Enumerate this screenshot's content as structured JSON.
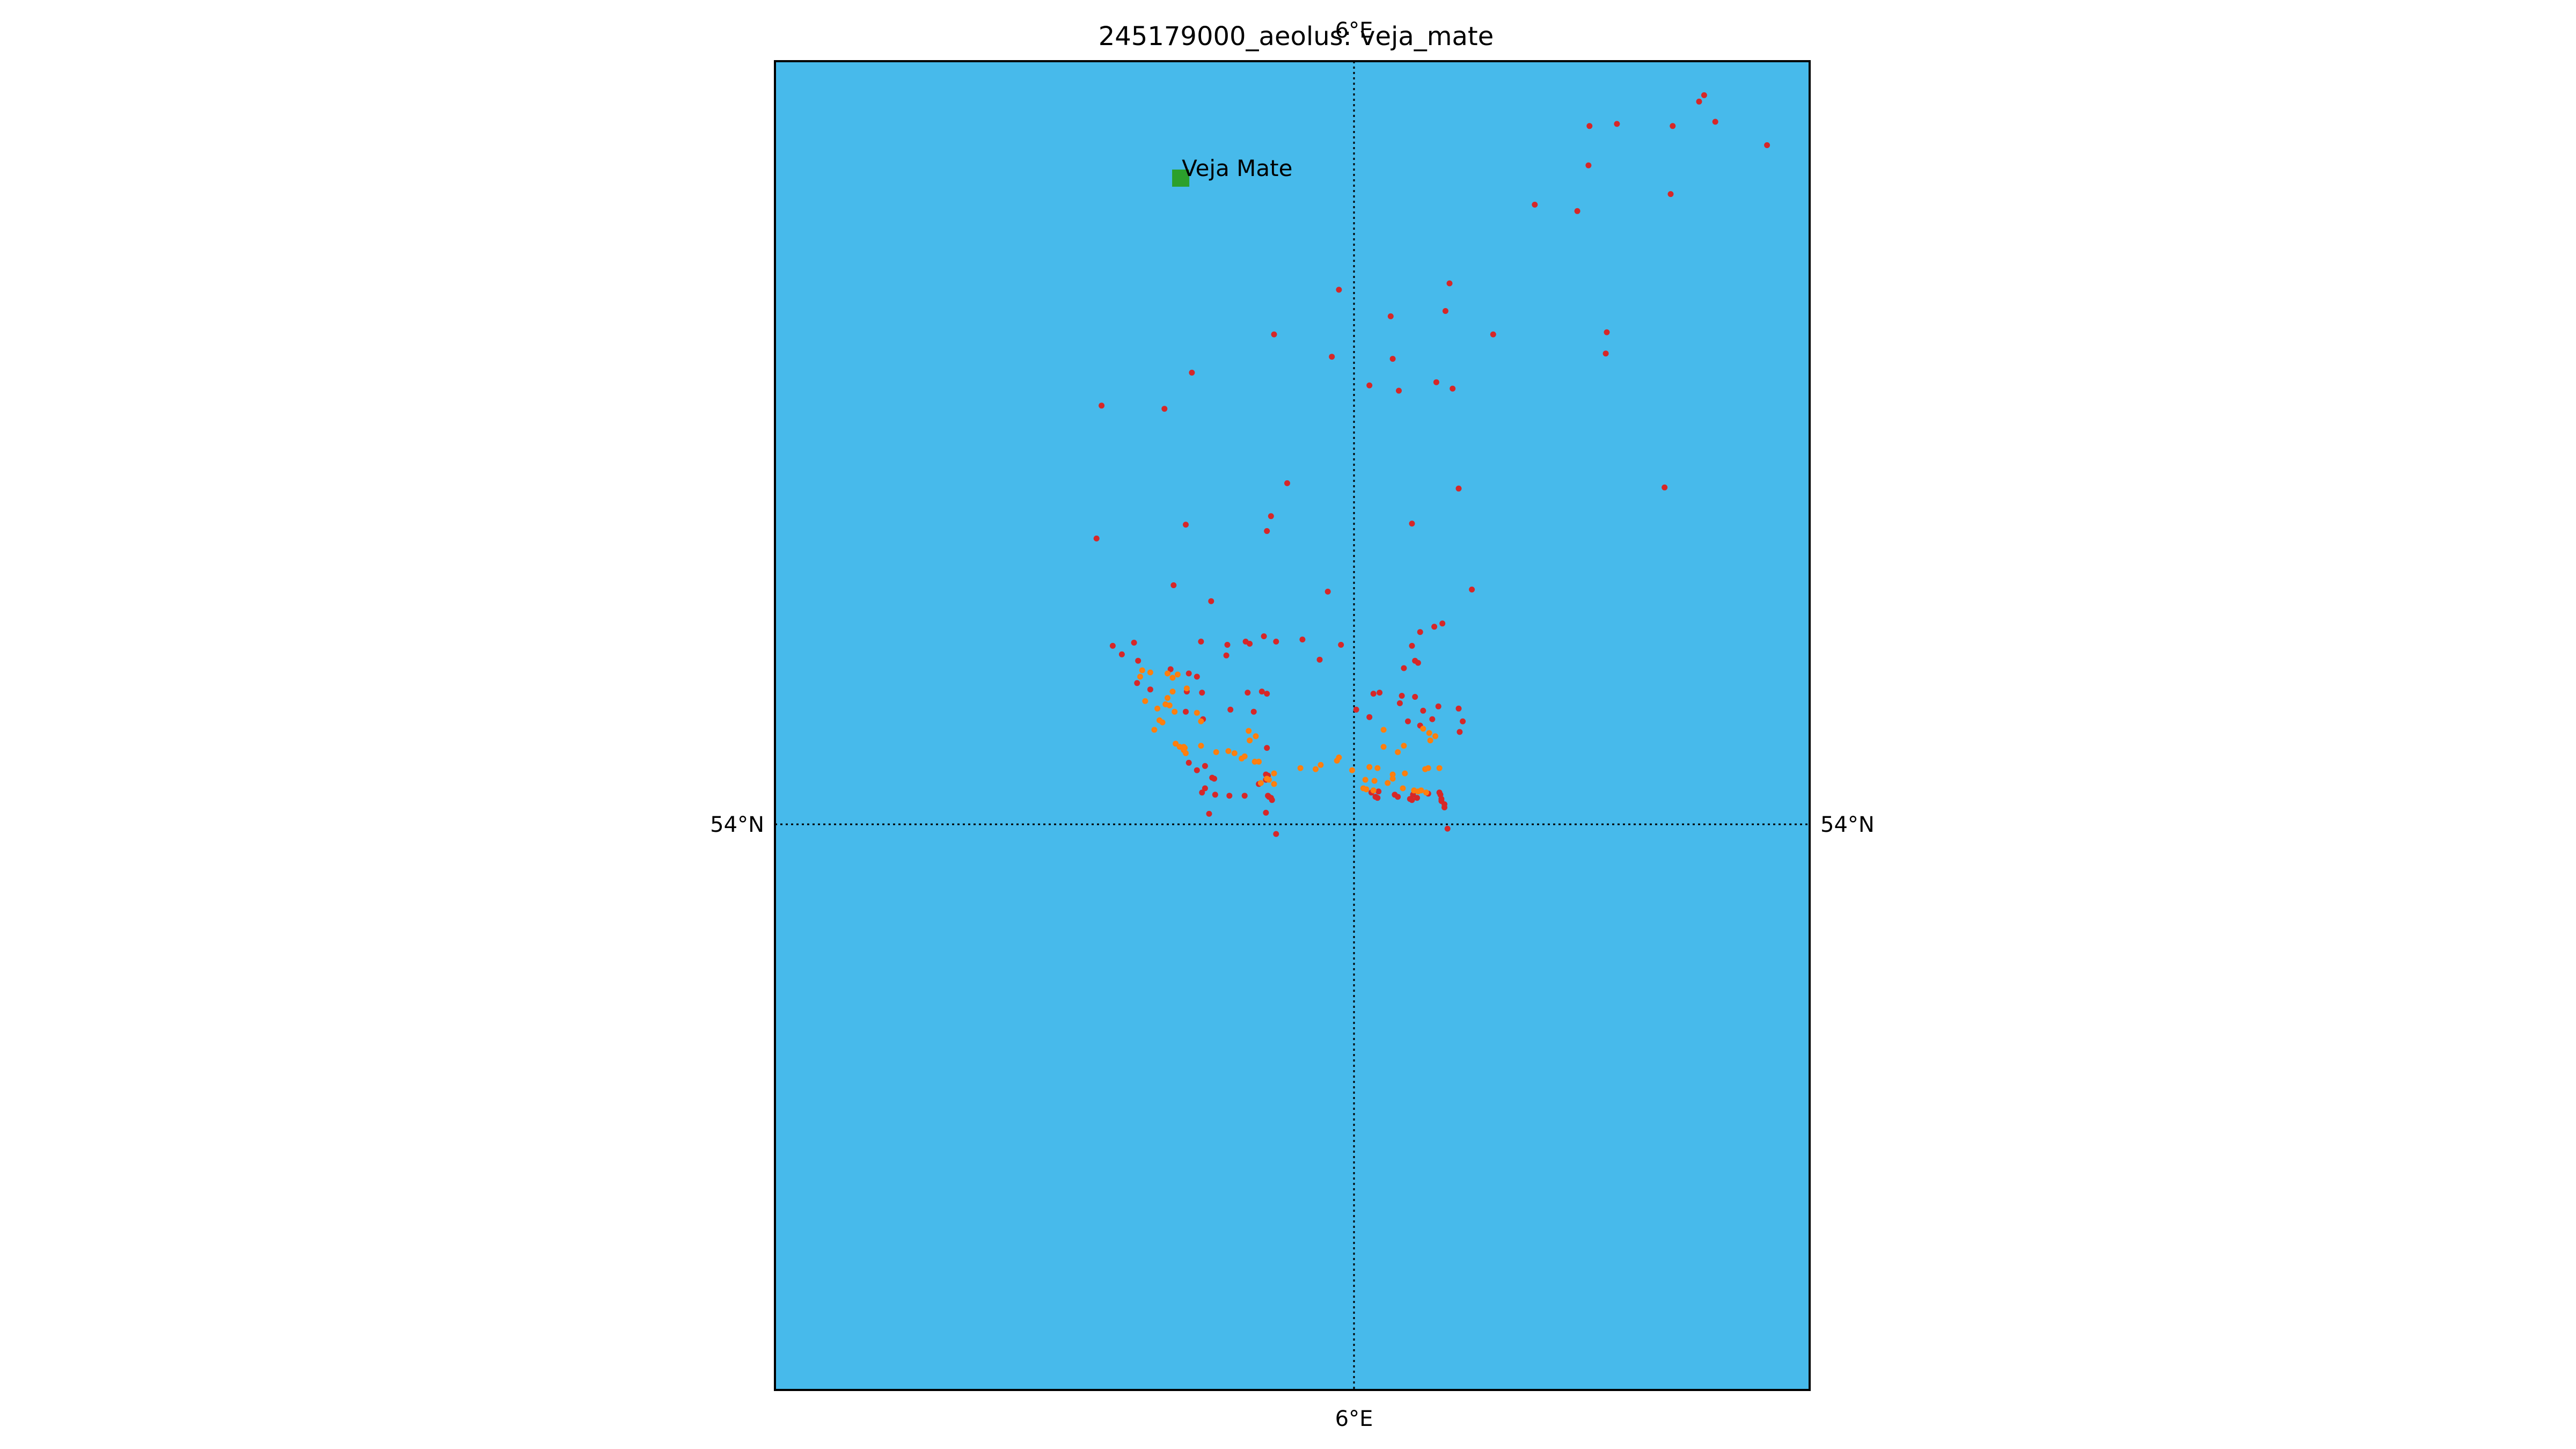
{
  "title": "245179000_aeolus: veja_mate",
  "map": {
    "ocean_color": "#47BAEB",
    "frame_color": "#000000",
    "lon_range": [
      5.45,
      6.47
    ],
    "lat_range": [
      53.47,
      54.72
    ],
    "meridian": {
      "value": 6.0,
      "label_top": "6°E",
      "label_bottom": "6°E"
    },
    "parallel": {
      "value": 54.0,
      "label_left": "54°N",
      "label_right": "54°N"
    }
  },
  "site": {
    "name": "Veja Mate",
    "lon": 5.85,
    "lat": 54.61,
    "color": "#2CA02C"
  },
  "chart_data": {
    "type": "scatter",
    "title": "245179000_aeolus: veja_mate",
    "xlabel": "",
    "ylabel": "",
    "xlim": [
      5.45,
      6.47
    ],
    "ylim": [
      53.47,
      54.72
    ],
    "grid": true,
    "series": [
      {
        "color": "#D62728",
        "points": [
          [
            6.366,
            54.688
          ],
          [
            6.361,
            54.682
          ],
          [
            6.377,
            54.663
          ],
          [
            6.253,
            54.659
          ],
          [
            6.28,
            54.661
          ],
          [
            6.335,
            54.659
          ],
          [
            6.428,
            54.641
          ],
          [
            6.252,
            54.622
          ],
          [
            6.333,
            54.595
          ],
          [
            6.199,
            54.585
          ],
          [
            6.241,
            54.579
          ],
          [
            6.006,
            54.505
          ],
          [
            6.115,
            54.511
          ],
          [
            6.111,
            54.485
          ],
          [
            6.057,
            54.48
          ],
          [
            5.942,
            54.463
          ],
          [
            6.158,
            54.463
          ],
          [
            6.27,
            54.465
          ],
          [
            5.999,
            54.442
          ],
          [
            6.059,
            54.44
          ],
          [
            6.269,
            54.445
          ],
          [
            5.861,
            54.427
          ],
          [
            6.036,
            54.415
          ],
          [
            6.102,
            54.418
          ],
          [
            6.065,
            54.41
          ],
          [
            6.118,
            54.412
          ],
          [
            5.772,
            54.396
          ],
          [
            5.834,
            54.393
          ],
          [
            5.955,
            54.323
          ],
          [
            6.124,
            54.318
          ],
          [
            6.327,
            54.319
          ],
          [
            6.078,
            54.285
          ],
          [
            5.855,
            54.284
          ],
          [
            5.939,
            54.292
          ],
          [
            5.935,
            54.278
          ],
          [
            5.767,
            54.271
          ],
          [
            5.995,
            54.221
          ],
          [
            6.137,
            54.223
          ],
          [
            5.843,
            54.227
          ],
          [
            5.88,
            54.212
          ],
          [
            6.108,
            54.191
          ],
          [
            6.1,
            54.188
          ],
          [
            6.086,
            54.183
          ],
          [
            6.078,
            54.17
          ],
          [
            5.932,
            54.179
          ],
          [
            5.944,
            54.174
          ],
          [
            5.97,
            54.176
          ],
          [
            5.914,
            54.174
          ],
          [
            5.918,
            54.172
          ],
          [
            6.008,
            54.171
          ],
          [
            5.783,
            54.17
          ],
          [
            5.804,
            54.173
          ],
          [
            5.87,
            54.174
          ],
          [
            5.896,
            54.171
          ],
          [
            5.792,
            54.162
          ],
          [
            5.808,
            54.156
          ],
          [
            5.895,
            54.161
          ],
          [
            5.987,
            54.157
          ],
          [
            6.081,
            54.156
          ],
          [
            6.084,
            54.154
          ],
          [
            6.07,
            54.149
          ],
          [
            5.84,
            54.148
          ],
          [
            5.858,
            54.144
          ],
          [
            5.866,
            54.141
          ],
          [
            5.807,
            54.135
          ],
          [
            5.82,
            54.129
          ],
          [
            5.856,
            54.127
          ],
          [
            5.871,
            54.126
          ],
          [
            5.916,
            54.126
          ],
          [
            5.93,
            54.127
          ],
          [
            5.935,
            54.125
          ],
          [
            6.04,
            54.125
          ],
          [
            6.046,
            54.126
          ],
          [
            6.068,
            54.123
          ],
          [
            6.081,
            54.122
          ],
          [
            5.899,
            54.11
          ],
          [
            6.066,
            54.116
          ],
          [
            6.104,
            54.113
          ],
          [
            6.124,
            54.111
          ],
          [
            5.922,
            54.108
          ],
          [
            6.023,
            54.11
          ],
          [
            6.089,
            54.109
          ],
          [
            5.855,
            54.108
          ],
          [
            5.872,
            54.101
          ],
          [
            6.036,
            54.103
          ],
          [
            6.074,
            54.099
          ],
          [
            6.098,
            54.101
          ],
          [
            6.086,
            54.095
          ],
          [
            6.128,
            54.099
          ],
          [
            6.125,
            54.089
          ],
          [
            5.935,
            54.074
          ],
          [
            5.858,
            54.06
          ],
          [
            5.874,
            54.057
          ],
          [
            5.866,
            54.053
          ],
          [
            5.881,
            54.046
          ],
          [
            5.883,
            54.045
          ],
          [
            5.934,
            54.049
          ],
          [
            5.936,
            54.048
          ],
          [
            5.934,
            54.044
          ],
          [
            5.927,
            54.04
          ],
          [
            5.874,
            54.036
          ],
          [
            5.871,
            54.032
          ],
          [
            5.884,
            54.03
          ],
          [
            5.898,
            54.029
          ],
          [
            5.913,
            54.029
          ],
          [
            5.936,
            54.029
          ],
          [
            5.937,
            54.028
          ],
          [
            5.939,
            54.027
          ],
          [
            5.94,
            54.025
          ],
          [
            6.038,
            54.032
          ],
          [
            6.045,
            54.033
          ],
          [
            6.061,
            54.03
          ],
          [
            6.079,
            54.03
          ],
          [
            6.094,
            54.031
          ],
          [
            6.105,
            54.032
          ],
          [
            6.106,
            54.03
          ],
          [
            6.042,
            54.028
          ],
          [
            6.044,
            54.027
          ],
          [
            6.064,
            54.028
          ],
          [
            6.076,
            54.026
          ],
          [
            6.078,
            54.025
          ],
          [
            6.083,
            54.027
          ],
          [
            6.107,
            54.026
          ],
          [
            6.107,
            54.024
          ],
          [
            6.11,
            54.021
          ],
          [
            5.878,
            54.012
          ],
          [
            5.934,
            54.013
          ],
          [
            6.11,
            54.018
          ],
          [
            6.113,
            53.998
          ],
          [
            5.944,
            53.993
          ]
        ]
      },
      {
        "color": "#FF7F0E",
        "points": [
          [
            5.812,
            54.147
          ],
          [
            5.82,
            54.145
          ],
          [
            5.837,
            54.144
          ],
          [
            5.847,
            54.143
          ],
          [
            5.81,
            54.141
          ],
          [
            5.842,
            54.14
          ],
          [
            5.842,
            54.127
          ],
          [
            5.856,
            54.13
          ],
          [
            5.837,
            54.121
          ],
          [
            5.815,
            54.118
          ],
          [
            5.835,
            54.115
          ],
          [
            5.839,
            54.114
          ],
          [
            5.827,
            54.111
          ],
          [
            5.844,
            54.108
          ],
          [
            5.866,
            54.107
          ],
          [
            5.829,
            54.1
          ],
          [
            5.832,
            54.098
          ],
          [
            5.824,
            54.091
          ],
          [
            5.87,
            54.099
          ],
          [
            5.917,
            54.09
          ],
          [
            6.05,
            54.091
          ],
          [
            6.089,
            54.092
          ],
          [
            6.095,
            54.088
          ],
          [
            6.101,
            54.085
          ],
          [
            5.845,
            54.078
          ],
          [
            5.849,
            54.075
          ],
          [
            5.853,
            54.075
          ],
          [
            5.854,
            54.074
          ],
          [
            5.853,
            54.072
          ],
          [
            5.855,
            54.069
          ],
          [
            5.87,
            54.076
          ],
          [
            5.918,
            54.081
          ],
          [
            5.924,
            54.085
          ],
          [
            5.897,
            54.071
          ],
          [
            5.903,
            54.069
          ],
          [
            6.05,
            54.075
          ],
          [
            6.064,
            54.07
          ],
          [
            6.07,
            54.076
          ],
          [
            6.096,
            54.081
          ],
          [
            5.885,
            54.07
          ],
          [
            5.91,
            54.064
          ],
          [
            5.913,
            54.066
          ],
          [
            5.923,
            54.061
          ],
          [
            5.927,
            54.061
          ],
          [
            6.004,
            54.062
          ],
          [
            6.006,
            54.065
          ],
          [
            6.059,
            54.049
          ],
          [
            6.071,
            54.05
          ],
          [
            5.968,
            54.055
          ],
          [
            5.983,
            54.054
          ],
          [
            5.988,
            54.058
          ],
          [
            6.019,
            54.053
          ],
          [
            6.036,
            54.056
          ],
          [
            6.044,
            54.055
          ],
          [
            6.091,
            54.054
          ],
          [
            6.094,
            54.055
          ],
          [
            6.105,
            54.055
          ],
          [
            5.935,
            54.045
          ],
          [
            5.937,
            54.044
          ],
          [
            5.942,
            54.05
          ],
          [
            6.032,
            54.044
          ],
          [
            6.041,
            54.043
          ],
          [
            6.054,
            54.041
          ],
          [
            6.059,
            54.045
          ],
          [
            6.08,
            54.034
          ],
          [
            6.087,
            54.034
          ],
          [
            5.929,
            54.041
          ],
          [
            5.942,
            54.04
          ],
          [
            6.03,
            54.036
          ],
          [
            6.033,
            54.035
          ],
          [
            6.04,
            54.034
          ],
          [
            6.069,
            54.036
          ],
          [
            6.084,
            54.033
          ],
          [
            6.092,
            54.032
          ]
        ]
      }
    ]
  }
}
